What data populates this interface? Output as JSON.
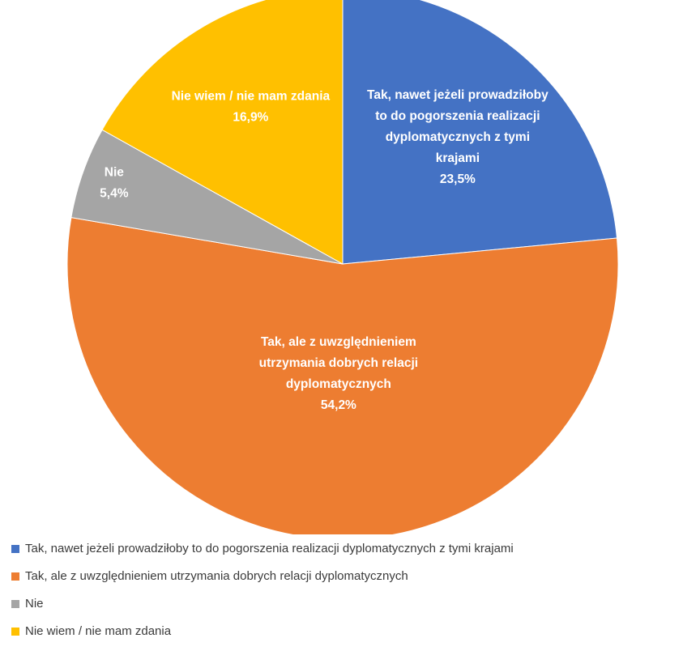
{
  "chart_data": {
    "type": "pie",
    "title": "",
    "start_angle_deg": 0,
    "direction": "clockwise",
    "legend_position": "bottom-left",
    "slices": [
      {
        "label_lines": [
          "Tak, nawet jeżeli prowadziłoby",
          "to do pogorszenia realizacji",
          "dyplomatycznych z tymi",
          "krajami"
        ],
        "legend": "Tak, nawet jeżeli prowadziłoby to do pogorszenia realizacji dyplomatycznych z tymi krajami",
        "value": 23.5,
        "value_label": "23,5%",
        "color": "#4472C4"
      },
      {
        "label_lines": [
          "Tak, ale z uwzględnieniem",
          "utrzymania dobrych relacji",
          "dyplomatycznych"
        ],
        "legend": "Tak, ale z uwzględnieniem utrzymania dobrych relacji dyplomatycznych",
        "value": 54.2,
        "value_label": "54,2%",
        "color": "#ED7D31"
      },
      {
        "label_lines": [
          "Nie"
        ],
        "legend": "Nie",
        "value": 5.4,
        "value_label": "5,4%",
        "color": "#A5A5A5"
      },
      {
        "label_lines": [
          "Nie wiem / nie mam zdania"
        ],
        "legend": "Nie wiem / nie mam zdania",
        "value": 16.9,
        "value_label": "16,9%",
        "color": "#FFC000"
      }
    ]
  }
}
